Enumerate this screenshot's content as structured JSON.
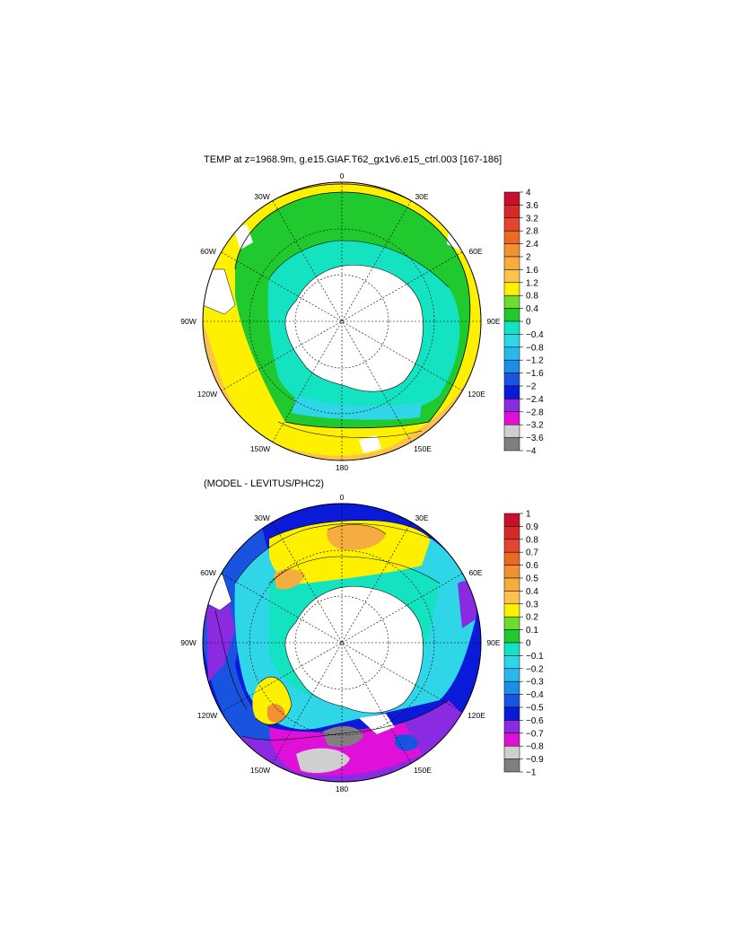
{
  "panels": [
    {
      "title": "TEMP at z=1968.9m, g.e15.GIAF.T62_gx1v6.e15_ctrl.003 [167-186]",
      "colorbar": {
        "labels": [
          "4",
          "3.6",
          "3.2",
          "2.8",
          "2.4",
          "2",
          "1.6",
          "1.2",
          "0.8",
          "0.4",
          "0",
          "−0.4",
          "−0.8",
          "−1.2",
          "−1.6",
          "−2",
          "−2.4",
          "−2.8",
          "−3.2",
          "−3.6",
          "−4"
        ],
        "colors": [
          "#c8102e",
          "#d52a27",
          "#e3452f",
          "#ea6a22",
          "#f19133",
          "#f6ad3f",
          "#fac34e",
          "#fff000",
          "#6ddc2c",
          "#1fc92e",
          "#14e3c2",
          "#2fd6e8",
          "#28b8ea",
          "#1b8ee8",
          "#1854e0",
          "#0a1ad8",
          "#8a2be2",
          "#e010d8",
          "#cfcfcf",
          "#7f7f7f"
        ]
      },
      "lon_labels": {
        "l0": "0",
        "l30e": "30E",
        "l60e": "60E",
        "l90e": "90E",
        "l120e": "120E",
        "l150e": "150E",
        "l180": "180",
        "l150w": "150W",
        "l120w": "120W",
        "l90w": "90W",
        "l60w": "60W",
        "l30w": "30W"
      }
    },
    {
      "title": "(MODEL - LEVITUS/PHC2)",
      "colorbar": {
        "labels": [
          "1",
          "0.9",
          "0.8",
          "0.7",
          "0.6",
          "0.5",
          "0.4",
          "0.3",
          "0.2",
          "0.1",
          "0",
          "−0.1",
          "−0.2",
          "−0.3",
          "−0.4",
          "−0.5",
          "−0.6",
          "−0.7",
          "−0.8",
          "−0.9",
          "−1"
        ],
        "colors": [
          "#c8102e",
          "#d52a27",
          "#e3452f",
          "#ea6a22",
          "#f19133",
          "#f6ad3f",
          "#fac34e",
          "#fff000",
          "#6ddc2c",
          "#1fc92e",
          "#14e3c2",
          "#2fd6e8",
          "#28b8ea",
          "#1b8ee8",
          "#1854e0",
          "#0a1ad8",
          "#8a2be2",
          "#e010d8",
          "#cfcfcf",
          "#7f7f7f"
        ]
      },
      "lon_labels": {
        "l0": "0",
        "l30e": "30E",
        "l60e": "60E",
        "l90e": "90E",
        "l120e": "120E",
        "l150e": "150E",
        "l180": "180",
        "l150w": "150W",
        "l120w": "120W",
        "l90w": "90W",
        "l60w": "60W",
        "l30w": "30W"
      }
    }
  ]
}
